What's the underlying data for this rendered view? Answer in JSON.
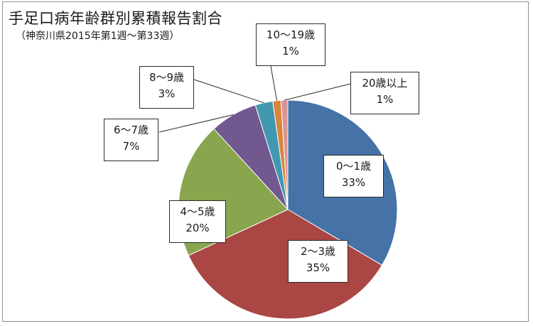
{
  "chart_data": {
    "type": "pie",
    "title": "手足口病年齢群別累積報告割合",
    "subtitle": "（神奈川県2015年第1週～第33週）",
    "slices": [
      {
        "label": "0～1歳",
        "percent_label": "33%",
        "value": 33.5,
        "color": "#4572a7"
      },
      {
        "label": "2～3歳",
        "percent_label": "35%",
        "value": 34.6,
        "color": "#aa4643"
      },
      {
        "label": "4～5歳",
        "percent_label": "20%",
        "value": 20.1,
        "color": "#89a54e"
      },
      {
        "label": "6～7歳",
        "percent_label": "7%",
        "value": 7.0,
        "color": "#71588f"
      },
      {
        "label": "8～9歳",
        "percent_label": "3%",
        "value": 2.6,
        "color": "#4198af"
      },
      {
        "label": "10～19歳",
        "percent_label": "1%",
        "value": 1.2,
        "color": "#db843d"
      },
      {
        "label": "20歳以上",
        "percent_label": "1%",
        "value": 1.0,
        "color": "#d99694"
      }
    ],
    "legend": "none"
  }
}
